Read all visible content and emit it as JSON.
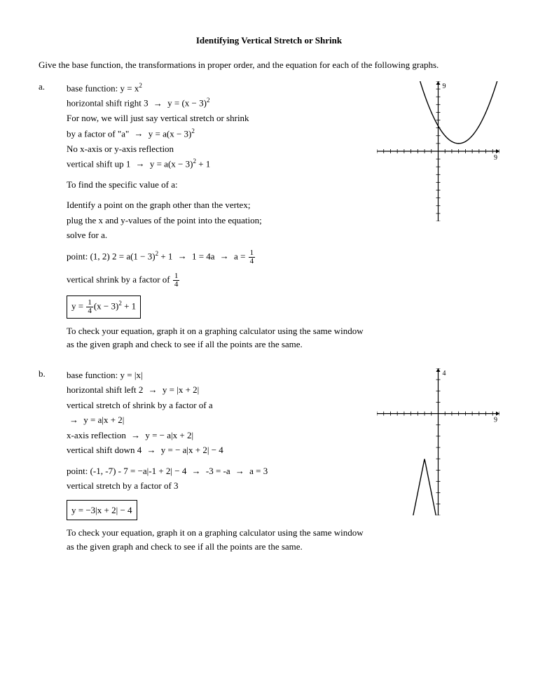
{
  "title": "Identifying Vertical Stretch or Shrink",
  "intro": "Give the base function, the transformations in proper order, and the equation for each of the following graphs.",
  "a": {
    "label": "a.",
    "l1a": "base function:  y = x",
    "l2a": "horizontal shift right 3  ",
    "l2b": "  y = (x − 3)",
    "l3": "For now, we will just say vertical stretch or shrink",
    "l4a": "by a factor of \"a\"  ",
    "l4b": "  y = a(x − 3)",
    "l5": "No x-axis or y-axis reflection",
    "l6a": "vertical shift up 1  ",
    "l6b": "  y = a(x − 3)",
    "l6c": " + 1",
    "l7": "To find the specific value of a:",
    "l8": "Identify a point on the graph other than the vertex;",
    "l9": "plug the x and y-values of the point into the equation;",
    "l10": "solve for a.",
    "l11a": "point: (1, 2)  2 = a(1 − 3)",
    "l11b": " + 1 ",
    "l11c": " 1 = 4a ",
    "l11d": " a = ",
    "l12": "vertical shrink by a factor of ",
    "boxa": "y = ",
    "boxb": "(x − 3)",
    "boxc": " + 1",
    "check": "To check your equation, graph it on a graphing calculator using the same window as the given graph and check to see if all the points are the same.",
    "graph": {
      "xmin": -9,
      "xmax": 9,
      "ymin": -9,
      "ymax": 9,
      "ytop": "9",
      "xright": "9",
      "curve": "parabola",
      "a": 0.25,
      "h": 3,
      "k": 1
    }
  },
  "b": {
    "label": "b.",
    "l1": "base function:  y = |x|",
    "l2a": "horizontal shift left 2  ",
    "l2b": "  y = |x + 2|",
    "l3": "vertical stretch of shrink by a factor of a",
    "l4": "  y = a|x + 2|",
    "l5a": "x-axis reflection  ",
    "l5b": "  y = − a|x + 2|",
    "l6a": "vertical shift down 4  ",
    "l6b": "  y = − a|x + 2| − 4",
    "l7a": "point: (-1, -7)  - 7 = −a|-1 + 2| − 4  ",
    "l7b": "  -3 = -a  ",
    "l7c": "  a = 3",
    "l8": "vertical stretch by a factor of 3",
    "box": "y = −3|x + 2| − 4",
    "check": "To check your equation, graph it on a graphing calculator using the same window as the given graph and check to see if all the points are the same.",
    "graph": {
      "xmin": -9,
      "xmax": 9,
      "ymin": -9,
      "ymax": 4,
      "ytop": "4",
      "xright": "9",
      "curve": "absval",
      "a": -3,
      "h": -2,
      "k": -4
    }
  }
}
